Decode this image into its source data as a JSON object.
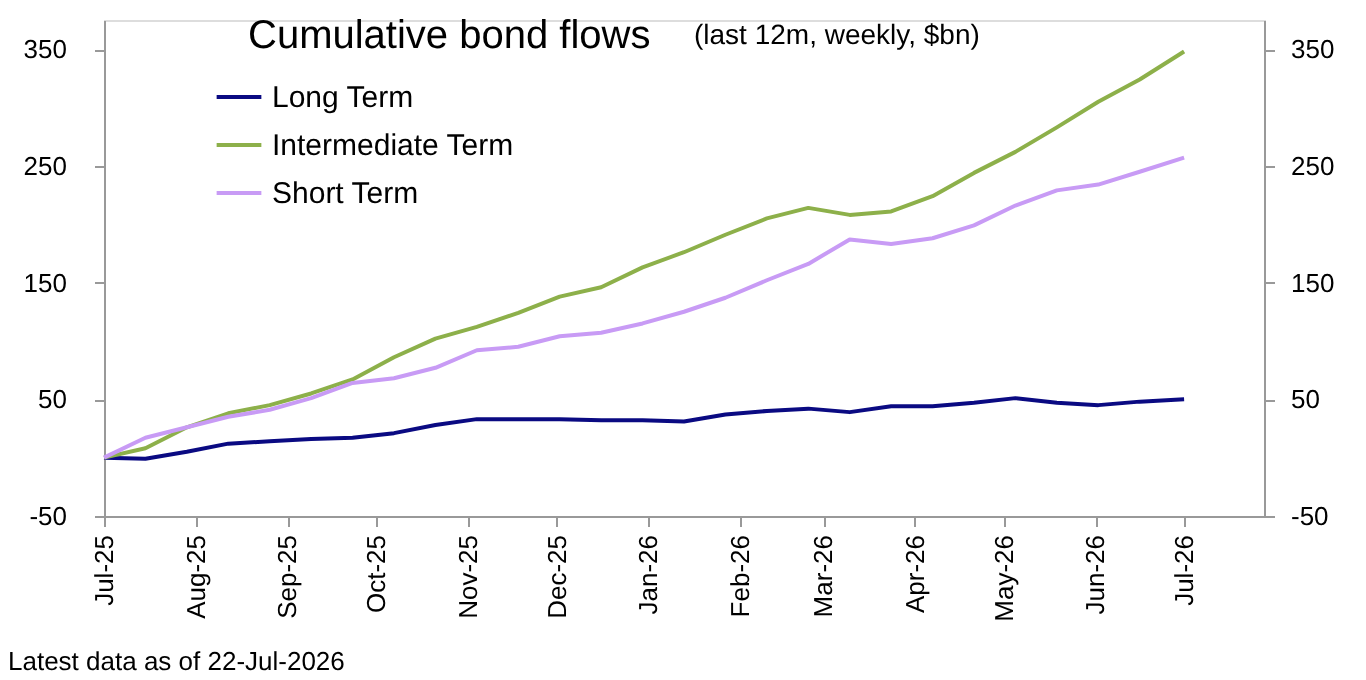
{
  "chart_data": {
    "type": "line",
    "title": "Cumulative bond flows",
    "subtitle": "(last 12m, weekly, $bn)",
    "x": [
      "2025-07-22",
      "2025-08-05",
      "2025-08-19",
      "2025-09-02",
      "2025-09-16",
      "2025-09-30",
      "2025-10-14",
      "2025-10-28",
      "2025-11-11",
      "2025-11-25",
      "2025-12-09",
      "2025-12-23",
      "2026-01-06",
      "2026-01-20",
      "2026-02-03",
      "2026-02-17",
      "2026-03-03",
      "2026-03-17",
      "2026-03-31",
      "2026-04-14",
      "2026-04-28",
      "2026-05-12",
      "2026-05-26",
      "2026-06-09",
      "2026-06-23",
      "2026-07-07",
      "2026-07-22"
    ],
    "series": [
      {
        "name": "Long Term",
        "color": "#0a0a82",
        "values": [
          0,
          -1,
          5,
          12,
          14,
          16,
          17,
          21,
          28,
          33,
          33,
          33,
          32,
          32,
          31,
          37,
          40,
          42,
          39,
          44,
          44,
          47,
          51,
          47,
          45,
          48,
          50
        ]
      },
      {
        "name": "Intermediate Term",
        "color": "#8db04a",
        "values": [
          0,
          8,
          26,
          38,
          45,
          55,
          67,
          86,
          102,
          112,
          124,
          138,
          146,
          163,
          176,
          191,
          205,
          214,
          208,
          211,
          224,
          244,
          262,
          283,
          305,
          324,
          348
        ]
      },
      {
        "name": "Short Term",
        "color": "#c89bf5",
        "values": [
          0,
          17,
          26,
          35,
          41,
          51,
          64,
          68,
          77,
          92,
          95,
          104,
          107,
          115,
          125,
          137,
          152,
          166,
          187,
          183,
          188,
          199,
          216,
          229,
          234,
          245,
          257
        ]
      }
    ],
    "xlim": [
      "2025-07-22",
      "2026-08-18"
    ],
    "xticks": [
      {
        "value": "2025-07-22",
        "label": "Jul-25"
      },
      {
        "value": "2025-08-22",
        "label": "Aug-25"
      },
      {
        "value": "2025-09-22",
        "label": "Sep-25"
      },
      {
        "value": "2025-10-22",
        "label": "Oct-25"
      },
      {
        "value": "2025-11-22",
        "label": "Nov-25"
      },
      {
        "value": "2025-12-22",
        "label": "Dec-25"
      },
      {
        "value": "2026-01-22",
        "label": "Jan-26"
      },
      {
        "value": "2026-02-22",
        "label": "Feb-26"
      },
      {
        "value": "2026-03-22",
        "label": "Mar-26"
      },
      {
        "value": "2026-04-22",
        "label": "Apr-26"
      },
      {
        "value": "2026-05-22",
        "label": "May-26"
      },
      {
        "value": "2026-06-22",
        "label": "Jun-26"
      },
      {
        "value": "2026-07-22",
        "label": "Jul-26"
      }
    ],
    "ylim": [
      -50,
      375
    ],
    "yticks": [
      -50,
      50,
      150,
      250,
      350
    ],
    "y2lim": [
      -50,
      375
    ],
    "y2ticks": [
      -50,
      50,
      150,
      250,
      350
    ],
    "annotations": [
      "Latest data as of 22-Jul-2026"
    ],
    "legend": "top left",
    "grid": false,
    "marker": "none",
    "line_style": "solid"
  }
}
